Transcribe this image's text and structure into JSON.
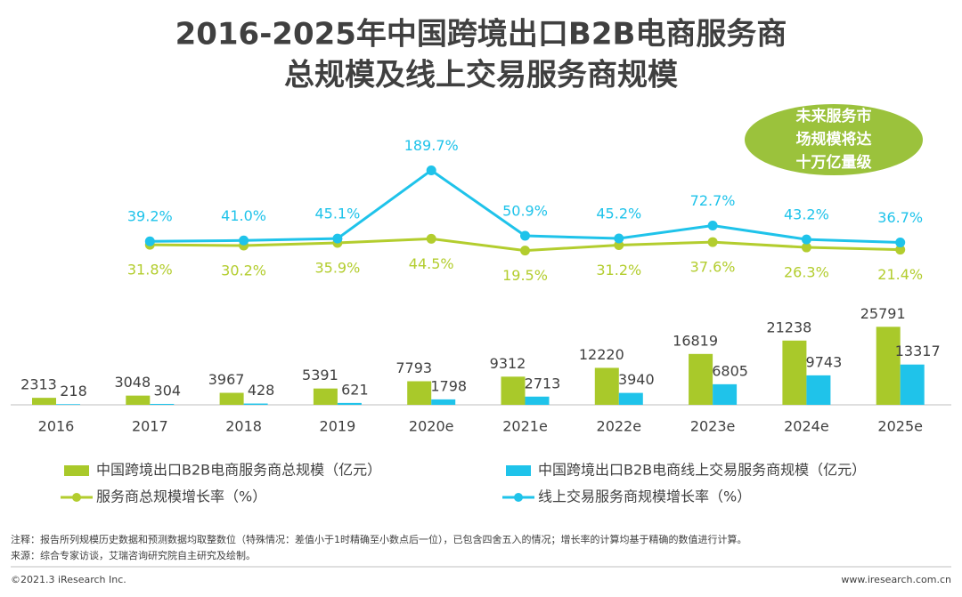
{
  "chart_data": {
    "type": "bar",
    "title": [
      "2016-2025年中国跨境出口B2B电商服务商",
      "总规模及线上交易服务商规模"
    ],
    "annotation": [
      "未来服务市",
      "场规模将达",
      "十万亿量级"
    ],
    "categories": [
      "2016",
      "2017",
      "2018",
      "2019",
      "2020e",
      "2021e",
      "2022e",
      "2023e",
      "2024e",
      "2025e"
    ],
    "ylim": [
      0,
      30000
    ],
    "y2lim": [
      0,
      200
    ],
    "series": [
      {
        "name": "中国跨境出口B2B电商服务商总规模（亿元）",
        "type": "bar",
        "color": "#a9c92a",
        "values": [
          2313,
          3048,
          3967,
          5391,
          7793,
          9312,
          12220,
          16819,
          21238,
          25791
        ]
      },
      {
        "name": "中国跨境出口B2B电商线上交易服务商规模（亿元）",
        "type": "bar",
        "color": "#1fc3ea",
        "values": [
          218,
          304,
          428,
          621,
          1798,
          2713,
          3940,
          6805,
          9743,
          13317
        ]
      },
      {
        "name": "服务商总规模增长率（%）",
        "type": "line",
        "axis": "y2",
        "color": "#b3cd2e",
        "values": [
          null,
          31.8,
          30.2,
          35.9,
          44.5,
          19.5,
          31.2,
          37.6,
          26.3,
          21.4
        ],
        "value_labels": [
          null,
          "31.8%",
          "30.2%",
          "35.9%",
          "44.5%",
          "19.5%",
          "31.2%",
          "37.6%",
          "26.3%",
          "21.4%"
        ]
      },
      {
        "name": "线上交易服务商规模增长率（%）",
        "type": "line",
        "axis": "y2",
        "color": "#1fc3ea",
        "values": [
          null,
          39.2,
          41.0,
          45.1,
          189.7,
          50.9,
          45.2,
          72.7,
          43.2,
          36.7
        ],
        "value_labels": [
          null,
          "39.2%",
          "41.0%",
          "45.1%",
          "189.7%",
          "50.9%",
          "45.2%",
          "72.7%",
          "43.2%",
          "36.7%"
        ]
      }
    ],
    "notes": [
      "注释：报告所列规模历史数据和预测数据均取整数位（特殊情况：差值小于1时精确至小数点后一位），已包含四舍五入的情况；增长率的计算均基于精确的数值进行计算。",
      "来源：综合专家访谈，艾瑞咨询研究院自主研究及绘制。"
    ],
    "footer_left": "©2021.3 iResearch Inc.",
    "footer_right": "www.iresearch.com.cn"
  }
}
